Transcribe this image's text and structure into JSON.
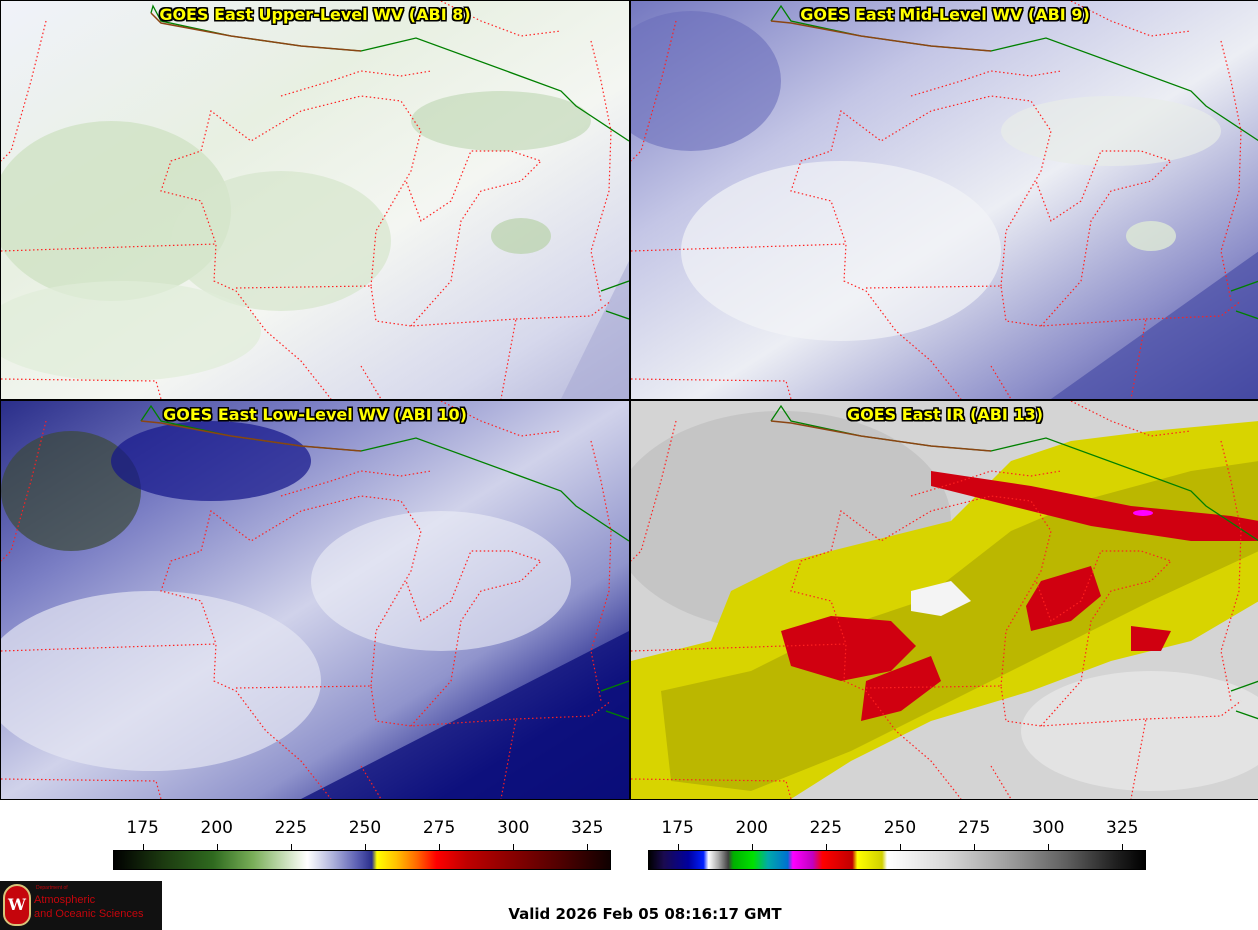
{
  "panels": [
    {
      "id": "upper",
      "title": "GOES East Upper-Level WV (ABI 8)"
    },
    {
      "id": "mid",
      "title": "GOES East Mid-Level WV (ABI 9)"
    },
    {
      "id": "low",
      "title": "GOES East Low-Level WV (ABI 10)"
    },
    {
      "id": "ir",
      "title": "GOES East IR (ABI 13)"
    }
  ],
  "colorbars": {
    "wv": {
      "ticks": [
        "175",
        "200",
        "225",
        "250",
        "275",
        "300",
        "325"
      ],
      "range": [
        165,
        333
      ]
    },
    "ir": {
      "ticks": [
        "175",
        "200",
        "225",
        "250",
        "275",
        "300",
        "325"
      ],
      "range": [
        165,
        333
      ]
    }
  },
  "valid_time": "Valid 2026 Feb 05 08:16:17 GMT",
  "logo": {
    "small": "Department of",
    "line1": "Atmospheric",
    "line2": "and Oceanic Sciences",
    "seal_letter": "W"
  },
  "colors": {
    "state_borders": "#ff2020",
    "international_border": "#008000",
    "coastline": "#8b4513",
    "title_text": "#ffff00"
  }
}
